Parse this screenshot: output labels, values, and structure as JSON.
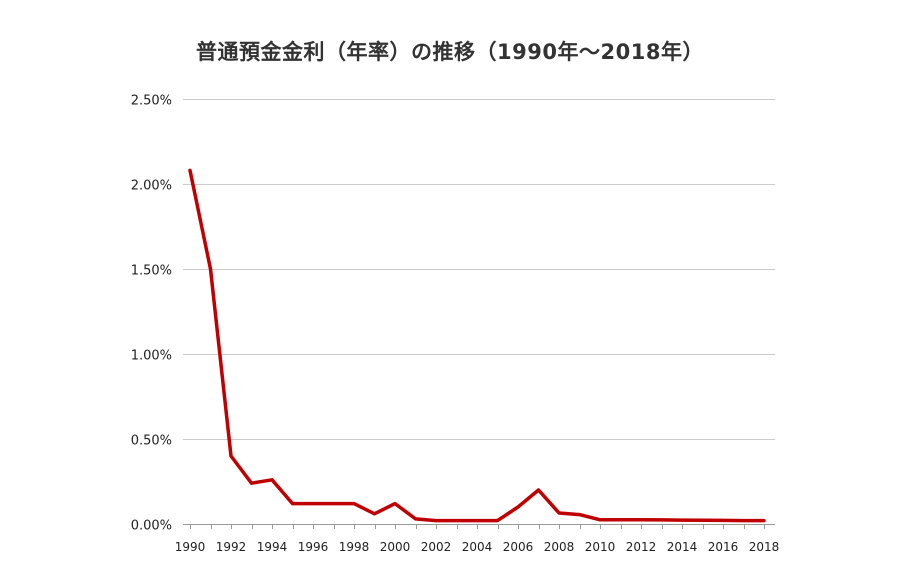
{
  "chart_data": {
    "type": "line",
    "title": "普通預金金利（年率）の推移（1990年〜2018年）",
    "xlabel": "",
    "ylabel": "",
    "xlim": [
      1990,
      2018
    ],
    "ylim": [
      0,
      2.5
    ],
    "y_ticks": [
      "0.00%",
      "0.50%",
      "1.00%",
      "1.50%",
      "2.00%",
      "2.50%"
    ],
    "y_tick_values": [
      0,
      0.5,
      1.0,
      1.5,
      2.0,
      2.5
    ],
    "x_ticks": [
      "1990",
      "1992",
      "1994",
      "1996",
      "1998",
      "2000",
      "2002",
      "2004",
      "2006",
      "2008",
      "2010",
      "2012",
      "2014",
      "2016",
      "2018"
    ],
    "x_tick_values": [
      1990,
      1992,
      1994,
      1996,
      1998,
      2000,
      2002,
      2004,
      2006,
      2008,
      2010,
      2012,
      2014,
      2016,
      2018
    ],
    "grid": true,
    "line_color": "#c00000",
    "grid_color": "#cccccc",
    "series": [
      {
        "x": [
          1990,
          1991,
          1992,
          1993,
          1994,
          1995,
          1996,
          1997,
          1998,
          1999,
          2000,
          2001,
          2002,
          2003,
          2004,
          2005,
          2006,
          2007,
          2008,
          2009,
          2010,
          2011,
          2012,
          2013,
          2014,
          2015,
          2016,
          2017,
          2018
        ],
        "values": [
          2.08,
          1.5,
          0.4,
          0.24,
          0.26,
          0.12,
          0.12,
          0.12,
          0.12,
          0.06,
          0.12,
          0.03,
          0.02,
          0.02,
          0.02,
          0.02,
          0.1,
          0.2,
          0.065,
          0.055,
          0.025,
          0.025,
          0.025,
          0.024,
          0.023,
          0.022,
          0.021,
          0.02,
          0.02
        ]
      }
    ]
  }
}
